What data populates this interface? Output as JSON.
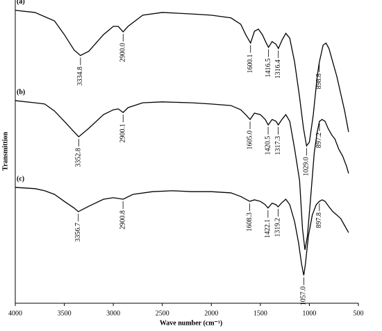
{
  "chart_data": {
    "type": "line",
    "xlabel": "Wave number (cm⁻¹)",
    "ylabel": "Transmittion",
    "xlim": [
      4000,
      500
    ],
    "xticks": [
      4000,
      3500,
      3000,
      2500,
      2000,
      1500,
      1000,
      500
    ],
    "ylim": [
      0,
      100
    ],
    "series": [
      {
        "name": "(a)",
        "color": "#000000",
        "x": [
          4000,
          3800,
          3600,
          3500,
          3400,
          3335,
          3250,
          3100,
          3000,
          2950,
          2900,
          2850,
          2700,
          2500,
          2200,
          2000,
          1800,
          1700,
          1650,
          1600,
          1560,
          1520,
          1480,
          1440,
          1417,
          1380,
          1340,
          1316,
          1280,
          1240,
          1200,
          1150,
          1100,
          1060,
          1029,
          1000,
          960,
          920,
          899,
          860,
          830,
          800,
          760,
          720,
          680,
          640,
          600
        ],
        "values": [
          96.6,
          95.9,
          93.1,
          88.6,
          83.5,
          81.7,
          83.1,
          88.6,
          91.3,
          91.3,
          89.5,
          91.3,
          95.0,
          95.9,
          95.4,
          95.0,
          94.1,
          92.0,
          88.6,
          85.8,
          89.7,
          90.4,
          88.6,
          85.8,
          84.4,
          86.3,
          85.4,
          84.0,
          86.7,
          89.0,
          87.4,
          79.4,
          68.0,
          57.7,
          51.9,
          53.1,
          62.2,
          74.8,
          79.4,
          85.1,
          85.8,
          84.0,
          79.4,
          74.8,
          69.1,
          63.4,
          56.5
        ],
        "peaks": [
          {
            "value": 3334.8,
            "label": "3334.8"
          },
          {
            "value": 2900.0,
            "label": "2900.0"
          },
          {
            "value": 1600.1,
            "label": "1600.1"
          },
          {
            "value": 1416.5,
            "label": "1416.5"
          },
          {
            "value": 1316.4,
            "label": "1316.4"
          },
          {
            "value": 1029.0,
            "label": "1029.0"
          },
          {
            "value": 898.8,
            "label": "898.8"
          }
        ]
      },
      {
        "name": "(b)",
        "color": "#000000",
        "x": [
          4000,
          3800,
          3700,
          3600,
          3500,
          3400,
          3353,
          3250,
          3100,
          3000,
          2950,
          2900,
          2850,
          2700,
          2500,
          2200,
          2000,
          1800,
          1700,
          1650,
          1605,
          1560,
          1500,
          1450,
          1420,
          1380,
          1340,
          1317,
          1280,
          1240,
          1200,
          1150,
          1100,
          1070,
          1045,
          1020,
          990,
          950,
          920,
          897,
          870,
          840,
          810,
          770,
          740,
          700,
          660,
          620,
          600
        ],
        "values": [
          66.8,
          66.1,
          65.7,
          63.4,
          60.0,
          56.5,
          54.9,
          57.7,
          62.2,
          63.8,
          64.1,
          62.9,
          64.5,
          66.1,
          66.4,
          66.1,
          65.7,
          65.2,
          63.8,
          62.2,
          60.6,
          62.7,
          62.2,
          60.6,
          58.8,
          60.6,
          60.0,
          58.8,
          60.6,
          62.2,
          60.0,
          50.8,
          40.5,
          24.5,
          17.6,
          22.2,
          33.6,
          49.7,
          56.5,
          60.0,
          60.6,
          60.0,
          57.7,
          55.4,
          54.2,
          50.8,
          48.5,
          45.1,
          42.8
        ],
        "peaks": [
          {
            "value": 3352.8,
            "label": "3352.8"
          },
          {
            "value": 2900.1,
            "label": "2900.1"
          },
          {
            "value": 1605.0,
            "label": "1605.0"
          },
          {
            "value": 1420.5,
            "label": "1420.5"
          },
          {
            "value": 1317.3,
            "label": "1317.3"
          },
          {
            "value": 897.2,
            "label": "897.2"
          }
        ]
      },
      {
        "name": "(c)",
        "color": "#000000",
        "x": [
          4000,
          3800,
          3700,
          3600,
          3500,
          3400,
          3357,
          3250,
          3100,
          3000,
          2900,
          2800,
          2600,
          2400,
          2200,
          2000,
          1800,
          1700,
          1608,
          1560,
          1500,
          1450,
          1422,
          1380,
          1340,
          1319,
          1280,
          1240,
          1200,
          1150,
          1110,
          1080,
          1057,
          1040,
          1010,
          970,
          930,
          898,
          870,
          840,
          800,
          760,
          720,
          680,
          640,
          600
        ],
        "values": [
          38.2,
          37.8,
          37.1,
          35.9,
          33.6,
          31.4,
          30.2,
          32.0,
          34.3,
          34.8,
          34.3,
          35.9,
          36.8,
          37.1,
          36.8,
          36.8,
          36.4,
          35.2,
          33.6,
          34.1,
          33.6,
          32.5,
          31.4,
          33.0,
          32.5,
          31.8,
          33.2,
          34.3,
          32.5,
          26.8,
          19.9,
          13.0,
          9.2,
          13.0,
          22.2,
          29.1,
          32.5,
          33.6,
          34.1,
          33.6,
          31.8,
          30.2,
          29.1,
          27.9,
          25.6,
          23.3
        ],
        "peaks": [
          {
            "value": 3356.7,
            "label": "3356.7"
          },
          {
            "value": 2900.8,
            "label": "2900.8"
          },
          {
            "value": 1608.3,
            "label": "1608.3"
          },
          {
            "value": 1422.1,
            "label": "1422.1"
          },
          {
            "value": 1319.2,
            "label": "1319.2"
          },
          {
            "value": 1057.0,
            "label": "1057.0"
          },
          {
            "value": 897.8,
            "label": "897.8"
          }
        ]
      }
    ]
  }
}
